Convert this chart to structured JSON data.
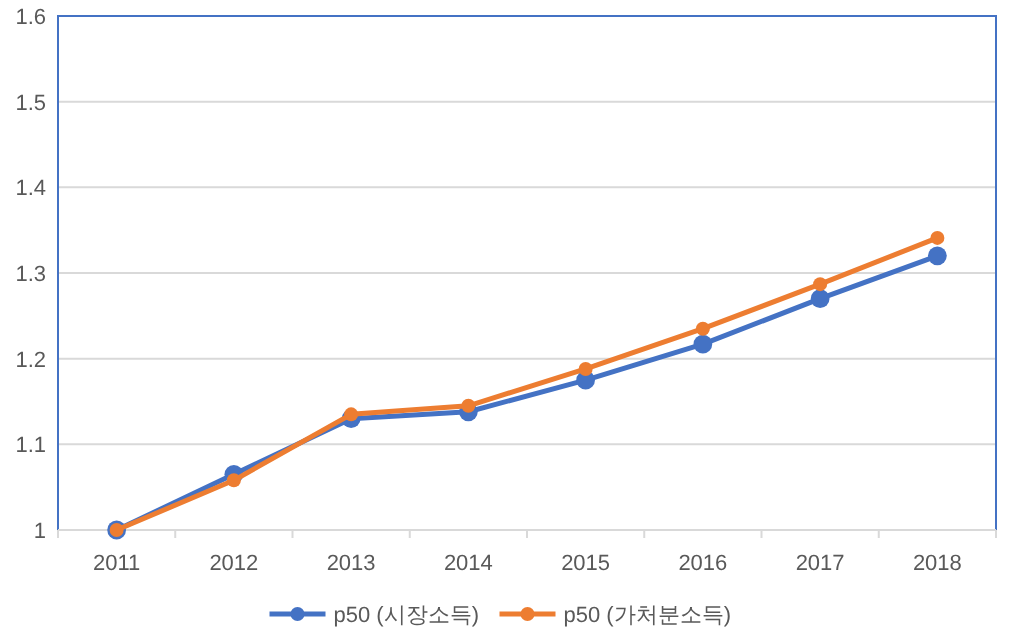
{
  "chart_data": {
    "type": "line",
    "categories": [
      "2011",
      "2012",
      "2013",
      "2014",
      "2015",
      "2016",
      "2017",
      "2018"
    ],
    "series": [
      {
        "name": "p50 (시장소득)",
        "color": "#4472c4",
        "values": [
          1,
          1.065,
          1.13,
          1.138,
          1.175,
          1.217,
          1.27,
          1.32
        ]
      },
      {
        "name": "p50 (가처분소득)",
        "color": "#ed7d31",
        "values": [
          1,
          1.058,
          1.135,
          1.145,
          1.188,
          1.235,
          1.287,
          1.341
        ]
      }
    ],
    "ylim": [
      1,
      1.6
    ],
    "yticks": [
      1,
      1.1,
      1.2,
      1.3,
      1.4,
      1.5,
      1.6
    ],
    "grid": "y",
    "legend": "bottom",
    "marker": "circle",
    "line_style": "solid"
  }
}
